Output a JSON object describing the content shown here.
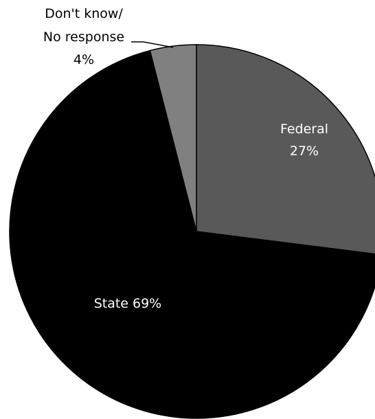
{
  "chart_data": {
    "type": "pie",
    "slices": [
      {
        "label": "Federal",
        "value": 27,
        "value_label": "27%",
        "color": "#595959",
        "label_color": "#ffffff"
      },
      {
        "label": "State",
        "value": 69,
        "value_label": "69%",
        "color": "#000000",
        "label_color": "#ffffff"
      },
      {
        "label_lines": [
          "Don't know/",
          "No response"
        ],
        "value": 4,
        "value_label": "4%",
        "color": "#808080",
        "label_color": "#000000"
      }
    ],
    "start": "12 o'clock",
    "direction": "clockwise",
    "slice_border_color": "#000000",
    "legend": "none"
  }
}
